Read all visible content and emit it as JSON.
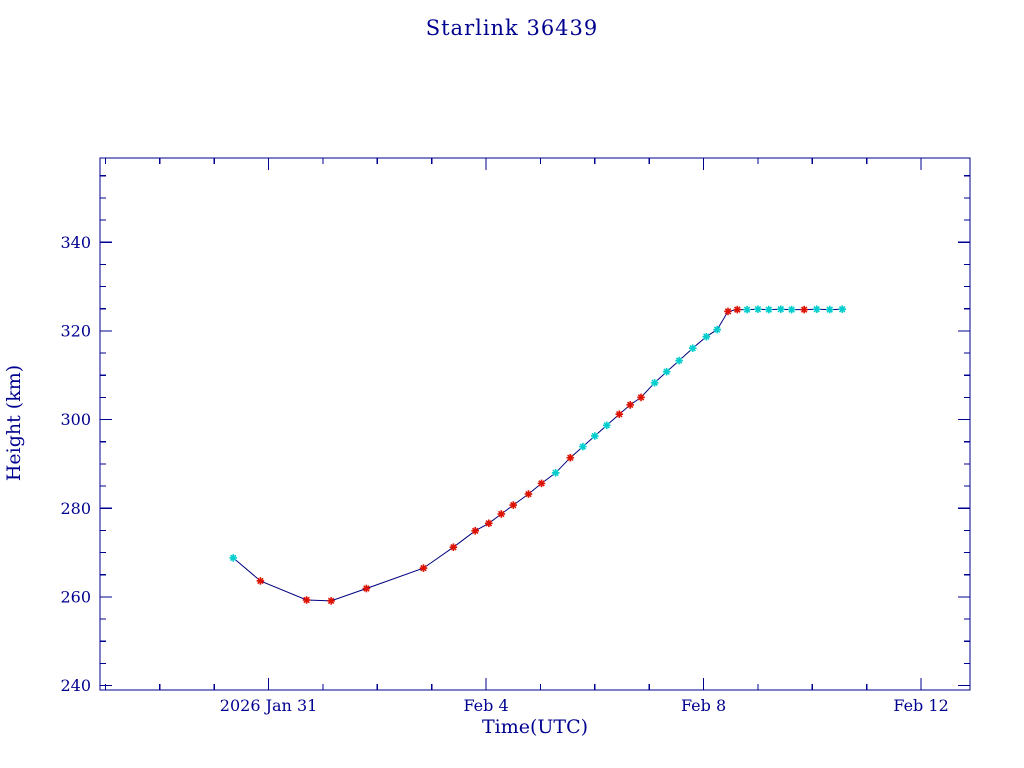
{
  "title": "Starlink 36439",
  "colors": {
    "frame": "#000090",
    "line": "#000080",
    "text": "#000090",
    "cyan": "#00CDCD",
    "red": "#DD1100"
  },
  "chart_data": {
    "type": "line",
    "title": "Starlink 36439",
    "xlabel": "Time(UTC)",
    "ylabel": "Height (km)",
    "x_unit": "days relative to 2026 Jan 31 00:00 UTC",
    "xlim_days": [
      -3.1,
      12.9
    ],
    "ylim": [
      239,
      359
    ],
    "x_major_ticks": [
      {
        "t": 0,
        "label": "2026 Jan 31"
      },
      {
        "t": 4,
        "label": "Feb 4"
      },
      {
        "t": 8,
        "label": "Feb 8"
      },
      {
        "t": 12,
        "label": "Feb 12"
      }
    ],
    "x_minor_step_days": 1,
    "y_major_ticks": [
      240,
      260,
      280,
      300,
      320,
      340
    ],
    "y_minor_step": 5,
    "points": [
      {
        "t": -0.65,
        "h": 268.8,
        "c": "cyan"
      },
      {
        "t": -0.15,
        "h": 263.6,
        "c": "red"
      },
      {
        "t": 0.7,
        "h": 259.3,
        "c": "red"
      },
      {
        "t": 1.15,
        "h": 259.1,
        "c": "red"
      },
      {
        "t": 1.8,
        "h": 261.9,
        "c": "red"
      },
      {
        "t": 2.85,
        "h": 266.5,
        "c": "red"
      },
      {
        "t": 3.4,
        "h": 271.2,
        "c": "red"
      },
      {
        "t": 3.8,
        "h": 274.9,
        "c": "red"
      },
      {
        "t": 4.05,
        "h": 276.6,
        "c": "red"
      },
      {
        "t": 4.28,
        "h": 278.7,
        "c": "red"
      },
      {
        "t": 4.5,
        "h": 280.7,
        "c": "red"
      },
      {
        "t": 4.78,
        "h": 283.2,
        "c": "red"
      },
      {
        "t": 5.02,
        "h": 285.6,
        "c": "red"
      },
      {
        "t": 5.28,
        "h": 288.0,
        "c": "cyan"
      },
      {
        "t": 5.55,
        "h": 291.4,
        "c": "red"
      },
      {
        "t": 5.78,
        "h": 293.9,
        "c": "cyan"
      },
      {
        "t": 6.0,
        "h": 296.3,
        "c": "cyan"
      },
      {
        "t": 6.22,
        "h": 298.7,
        "c": "cyan"
      },
      {
        "t": 6.45,
        "h": 301.2,
        "c": "red"
      },
      {
        "t": 6.65,
        "h": 303.3,
        "c": "red"
      },
      {
        "t": 6.85,
        "h": 305.0,
        "c": "red"
      },
      {
        "t": 7.1,
        "h": 308.3,
        "c": "cyan"
      },
      {
        "t": 7.32,
        "h": 310.8,
        "c": "cyan"
      },
      {
        "t": 7.55,
        "h": 313.3,
        "c": "cyan"
      },
      {
        "t": 7.8,
        "h": 316.1,
        "c": "cyan"
      },
      {
        "t": 8.05,
        "h": 318.7,
        "c": "cyan"
      },
      {
        "t": 8.25,
        "h": 320.3,
        "c": "cyan"
      },
      {
        "t": 8.45,
        "h": 324.4,
        "c": "red"
      },
      {
        "t": 8.62,
        "h": 324.8,
        "c": "red"
      },
      {
        "t": 8.8,
        "h": 324.8,
        "c": "cyan"
      },
      {
        "t": 9.0,
        "h": 324.9,
        "c": "cyan"
      },
      {
        "t": 9.2,
        "h": 324.8,
        "c": "cyan"
      },
      {
        "t": 9.42,
        "h": 324.9,
        "c": "cyan"
      },
      {
        "t": 9.62,
        "h": 324.8,
        "c": "cyan"
      },
      {
        "t": 9.85,
        "h": 324.8,
        "c": "red"
      },
      {
        "t": 10.08,
        "h": 324.9,
        "c": "cyan"
      },
      {
        "t": 10.32,
        "h": 324.8,
        "c": "cyan"
      },
      {
        "t": 10.55,
        "h": 324.9,
        "c": "cyan"
      }
    ]
  }
}
